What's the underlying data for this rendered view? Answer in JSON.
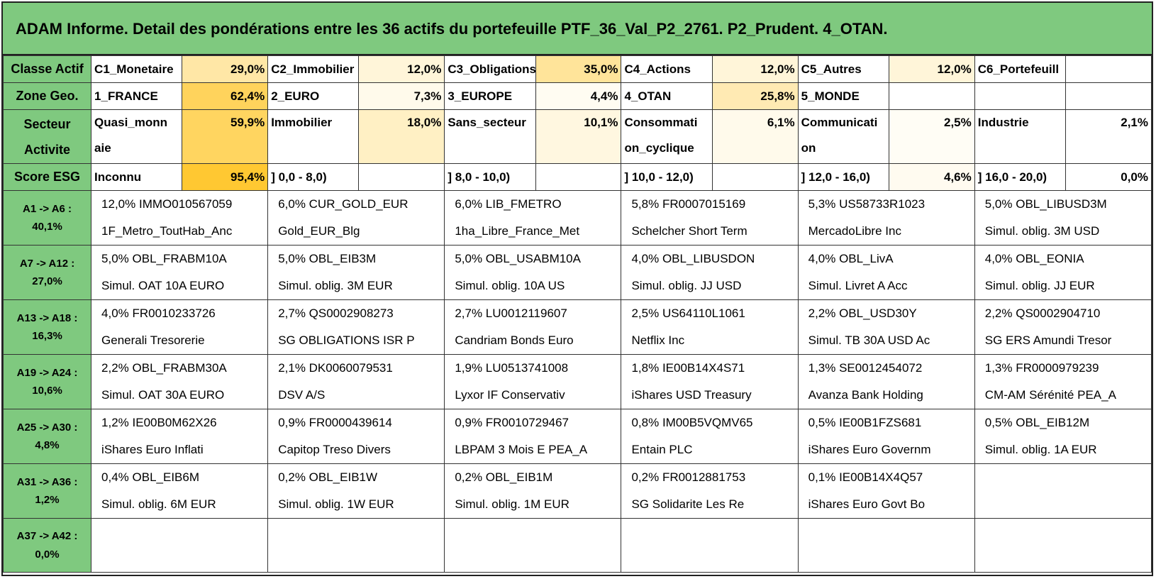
{
  "title": "ADAM Informe. Detail des pondérations entre les 36 actifs du portefeuille PTF_36_Val_P2_2761. P2_Prudent. 4_OTAN.",
  "colors": {
    "header_green": "#7fc97f",
    "heat_low": "#fff5d9",
    "heat_mid": "#ffe49a",
    "heat_high": "#ffd35c",
    "heat_max": "#ffc832"
  },
  "summary": [
    {
      "label": "Classe Actif",
      "cells": [
        {
          "name": "C1_Monetaire",
          "value": "29,0%",
          "heat": "#ffe7a6"
        },
        {
          "name": "C2_Immobilier",
          "value": "12,0%",
          "heat": "#fff5d9"
        },
        {
          "name": "C3_Obligations",
          "value": "35,0%",
          "heat": "#ffe49a"
        },
        {
          "name": "C4_Actions",
          "value": "12,0%",
          "heat": "#fff5d9"
        },
        {
          "name": "C5_Autres",
          "value": "12,0%",
          "heat": "#fff5d9"
        },
        {
          "name": "C6_Portefeuill",
          "value": "",
          "heat": "#ffffff"
        }
      ]
    },
    {
      "label": "Zone Geo.",
      "cells": [
        {
          "name": "1_FRANCE",
          "value": "62,4%",
          "heat": "#ffd35c"
        },
        {
          "name": "2_EURO",
          "value": "7,3%",
          "heat": "#fffaeb"
        },
        {
          "name": "3_EUROPE",
          "value": "4,4%",
          "heat": "#fffcf2"
        },
        {
          "name": "4_OTAN",
          "value": "25,8%",
          "heat": "#ffeab3"
        },
        {
          "name": "5_MONDE",
          "value": "",
          "heat": "#ffffff"
        },
        {
          "name": "",
          "value": "",
          "heat": "#ffffff"
        }
      ]
    },
    {
      "label_line1": "Secteur",
      "label_line2": "Activite",
      "cells": [
        {
          "name_line1": "Quasi_monn",
          "name_line2": "aie",
          "value": "59,9%",
          "heat": "#ffd560"
        },
        {
          "name_line1": "Immobilier",
          "name_line2": "",
          "value": "18,0%",
          "heat": "#fff0c4"
        },
        {
          "name_line1": "Sans_secteur",
          "name_line2": "",
          "value": "10,1%",
          "heat": "#fff7e0"
        },
        {
          "name_line1": "Consommati",
          "name_line2": "on_cyclique",
          "value": "6,1%",
          "heat": "#fffaeb"
        },
        {
          "name_line1": "Communicati",
          "name_line2": "on",
          "value": "2,5%",
          "heat": "#fffdf5"
        },
        {
          "name_line1": "Industrie",
          "name_line2": "",
          "value": "2,1%",
          "heat": "#ffffff"
        }
      ]
    },
    {
      "label": "Score ESG",
      "cells": [
        {
          "name": "Inconnu",
          "value": "95,4%",
          "heat": "#ffc832"
        },
        {
          "name": "] 0,0 - 8,0)",
          "value": "",
          "heat": "#ffffff"
        },
        {
          "name": "] 8,0 - 10,0)",
          "value": "",
          "heat": "#ffffff"
        },
        {
          "name": "] 10,0 - 12,0)",
          "value": "",
          "heat": "#ffffff"
        },
        {
          "name": "] 12,0 - 16,0)",
          "value": "4,6%",
          "heat": "#fffbf0"
        },
        {
          "name": "] 16,0 - 20,0)",
          "value": "0,0%",
          "heat": "#ffffff"
        }
      ]
    }
  ],
  "assets": [
    {
      "range": "A1 -> A6 :",
      "total": "40,1%",
      "items": [
        {
          "l1": "12,0% IMMO010567059",
          "l2": "1F_Metro_ToutHab_Anc"
        },
        {
          "l1": "6,0% CUR_GOLD_EUR",
          "l2": "Gold_EUR_Blg"
        },
        {
          "l1": "6,0% LIB_FMETRO",
          "l2": "1ha_Libre_France_Met"
        },
        {
          "l1": "5,8% FR0007015169",
          "l2": "Schelcher Short Term"
        },
        {
          "l1": "5,3% US58733R1023",
          "l2": "MercadoLibre Inc"
        },
        {
          "l1": "5,0% OBL_LIBUSD3M",
          "l2": "Simul. oblig. 3M USD"
        }
      ]
    },
    {
      "range": "A7 -> A12 :",
      "total": "27,0%",
      "items": [
        {
          "l1": "5,0% OBL_FRABM10A",
          "l2": "Simul. OAT 10A EURO"
        },
        {
          "l1": "5,0% OBL_EIB3M",
          "l2": "Simul. oblig. 3M EUR"
        },
        {
          "l1": "5,0% OBL_USABM10A",
          "l2": "Simul. oblig. 10A US"
        },
        {
          "l1": "4,0% OBL_LIBUSDON",
          "l2": "Simul. oblig. JJ USD"
        },
        {
          "l1": "4,0% OBL_LivA",
          "l2": "Simul. Livret A Acc"
        },
        {
          "l1": "4,0% OBL_EONIA",
          "l2": "Simul. oblig. JJ EUR"
        }
      ]
    },
    {
      "range": "A13 -> A18 :",
      "total": "16,3%",
      "items": [
        {
          "l1": "4,0% FR0010233726",
          "l2": "Generali Tresorerie"
        },
        {
          "l1": "2,7% QS0002908273",
          "l2": "SG OBLIGATIONS ISR P"
        },
        {
          "l1": "2,7% LU0012119607",
          "l2": "Candriam Bonds Euro"
        },
        {
          "l1": "2,5% US64110L1061",
          "l2": "Netflix Inc"
        },
        {
          "l1": "2,2% OBL_USD30Y",
          "l2": "Simul. TB 30A USD Ac"
        },
        {
          "l1": "2,2% QS0002904710",
          "l2": "SG ERS Amundi Tresor"
        }
      ]
    },
    {
      "range": "A19 -> A24 :",
      "total": "10,6%",
      "items": [
        {
          "l1": "2,2% OBL_FRABM30A",
          "l2": "Simul. OAT 30A EURO"
        },
        {
          "l1": "2,1% DK0060079531",
          "l2": "DSV A/S"
        },
        {
          "l1": "1,9% LU0513741008",
          "l2": "Lyxor IF Conservativ"
        },
        {
          "l1": "1,8% IE00B14X4S71",
          "l2": "iShares USD Treasury"
        },
        {
          "l1": "1,3% SE0012454072",
          "l2": "Avanza Bank Holding"
        },
        {
          "l1": "1,3% FR0000979239",
          "l2": "CM-AM Sérénité PEA_A"
        }
      ]
    },
    {
      "range": "A25 -> A30 :",
      "total": "4,8%",
      "items": [
        {
          "l1": "1,2% IE00B0M62X26",
          "l2": "iShares Euro Inflati"
        },
        {
          "l1": "0,9% FR0000439614",
          "l2": "Capitop Treso Divers"
        },
        {
          "l1": "0,9% FR0010729467",
          "l2": "LBPAM 3 Mois E PEA_A"
        },
        {
          "l1": "0,8% IM00B5VQMV65",
          "l2": "Entain PLC"
        },
        {
          "l1": "0,5% IE00B1FZS681",
          "l2": "iShares Euro Governm"
        },
        {
          "l1": "0,5% OBL_EIB12M",
          "l2": "Simul. oblig. 1A EUR"
        }
      ]
    },
    {
      "range": "A31 -> A36 :",
      "total": "1,2%",
      "items": [
        {
          "l1": "0,4% OBL_EIB6M",
          "l2": "Simul. oblig. 6M EUR"
        },
        {
          "l1": "0,2% OBL_EIB1W",
          "l2": "Simul. oblig. 1W EUR"
        },
        {
          "l1": "0,2% OBL_EIB1M",
          "l2": "Simul. oblig. 1M EUR"
        },
        {
          "l1": "0,2% FR0012881753",
          "l2": "SG Solidarite Les Re"
        },
        {
          "l1": "0,1% IE00B14X4Q57",
          "l2": "iShares Euro Govt Bo"
        },
        {
          "l1": "",
          "l2": ""
        }
      ]
    },
    {
      "range": "A37 -> A42 :",
      "total": "0,0%",
      "items": [
        {
          "l1": "",
          "l2": ""
        },
        {
          "l1": "",
          "l2": ""
        },
        {
          "l1": "",
          "l2": ""
        },
        {
          "l1": "",
          "l2": ""
        },
        {
          "l1": "",
          "l2": ""
        },
        {
          "l1": "",
          "l2": ""
        }
      ]
    }
  ]
}
